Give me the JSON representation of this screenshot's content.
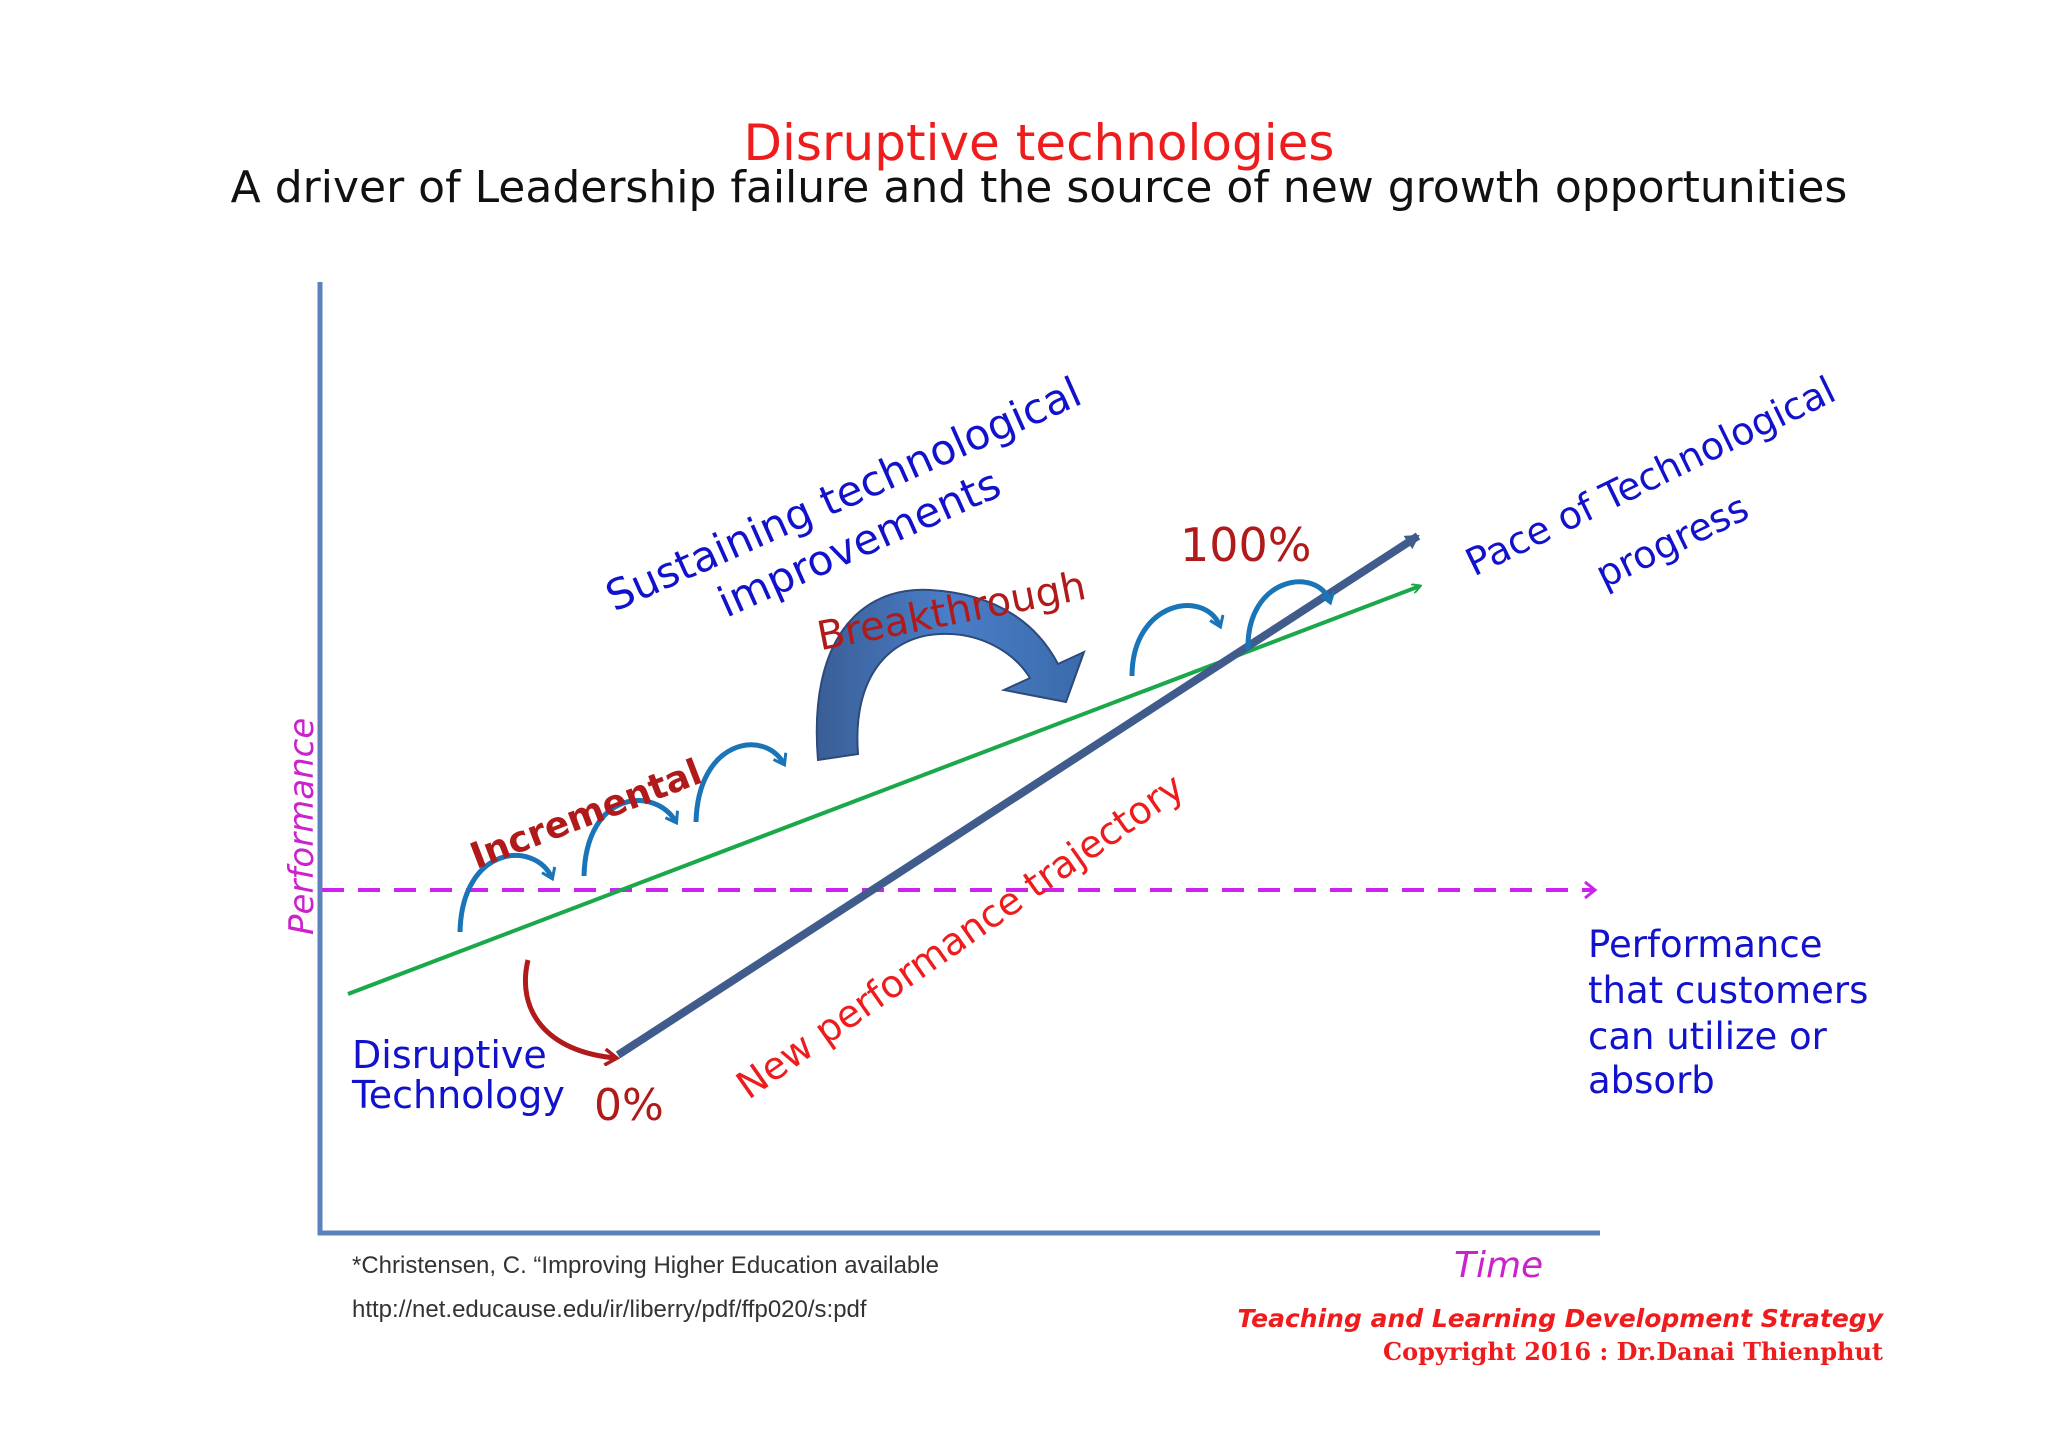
{
  "header": {
    "title": "Disruptive technologies",
    "subtitle": "A driver of Leadership failure and the source of new growth opportunities"
  },
  "axes": {
    "y_label": "Performance",
    "x_label": "Time"
  },
  "labels": {
    "sustaining": [
      "Sustaining technological",
      "improvements"
    ],
    "pace": [
      "Pace of Technological",
      "progress"
    ],
    "breakthrough": "Breakthrough",
    "incremental": "Incremental",
    "new_trajectory": "New performance trajectory",
    "percent_100": "100%",
    "percent_0": "0%",
    "disruptive": [
      "Disruptive",
      "Technology"
    ],
    "customers": [
      "Performance",
      "that customers",
      "can utilize or",
      "absorb"
    ]
  },
  "citation": {
    "line1": "*Christensen, C. “Improving Higher Education available",
    "line2": "http://net.educause.edu/ir/liberry/pdf/ffp020/s:pdf"
  },
  "credit": {
    "line1": "Teaching and Learning  Development Strategy",
    "line2": "Copyright  2016 : Dr.Danai  Thienphut"
  },
  "colors": {
    "title": "#ee1c1c",
    "axis": "#5b82bd",
    "green_line": "#1aa84a",
    "disruptive_line": "#3f5c8c",
    "dashed_line": "#cc22ee",
    "blue_text": "#1212cc",
    "red_text": "#b01a1a",
    "small_arrow": "#1a74b8",
    "axis_label": "#cc22cc"
  }
}
